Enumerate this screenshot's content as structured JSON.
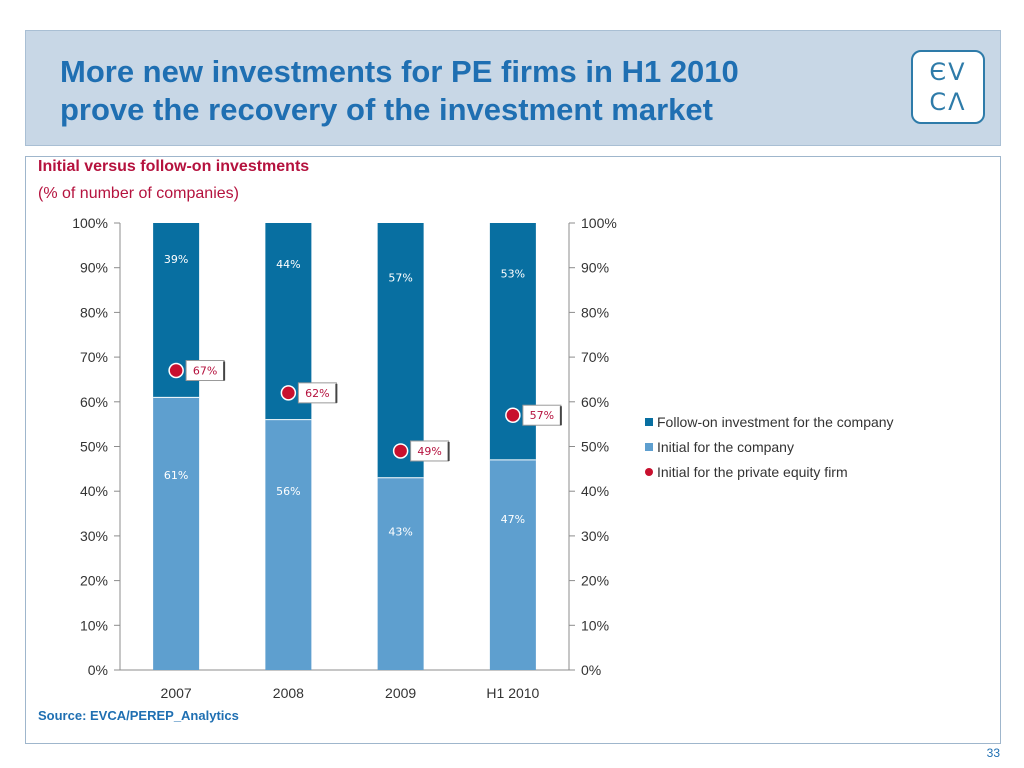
{
  "header": {
    "title_line1": "More new investments for PE firms in H1 2010",
    "title_line2": "prove the recovery of the investment market",
    "logo_top": "ЄV",
    "logo_bottom": "CΛ"
  },
  "footer": {
    "source": "Source: EVCA/PEREP_Analytics",
    "page_number": "33"
  },
  "colors": {
    "follow_on": "#086fa1",
    "initial_company": "#5e9fcf",
    "initial_pe": "#c8102e",
    "title": "#1f6fb2",
    "chart_title": "#b5123e"
  },
  "chart_data": {
    "type": "bar",
    "stacked": true,
    "title": "Initial versus follow-on investments",
    "subtitle": "(% of number of companies)",
    "categories": [
      "2007",
      "2008",
      "2009",
      "H1 2010"
    ],
    "series": [
      {
        "name": "Follow-on investment for the company",
        "values": [
          39,
          44,
          57,
          53
        ],
        "labels": [
          "39%",
          "44%",
          "57%",
          "53%"
        ]
      },
      {
        "name": "Initial for the company",
        "values": [
          61,
          56,
          43,
          47
        ],
        "labels": [
          "61%",
          "56%",
          "43%",
          "47%"
        ]
      },
      {
        "name": "Initial for the private equity firm",
        "type": "scatter",
        "values": [
          67,
          62,
          49,
          57
        ],
        "labels": [
          "67%",
          "62%",
          "49%",
          "57%"
        ]
      }
    ],
    "ylim": [
      0,
      100
    ],
    "yticks": [
      "0%",
      "10%",
      "20%",
      "30%",
      "40%",
      "50%",
      "60%",
      "70%",
      "80%",
      "90%",
      "100%"
    ],
    "secondary_y_axis": true,
    "legend_position": "right",
    "grid": false
  }
}
